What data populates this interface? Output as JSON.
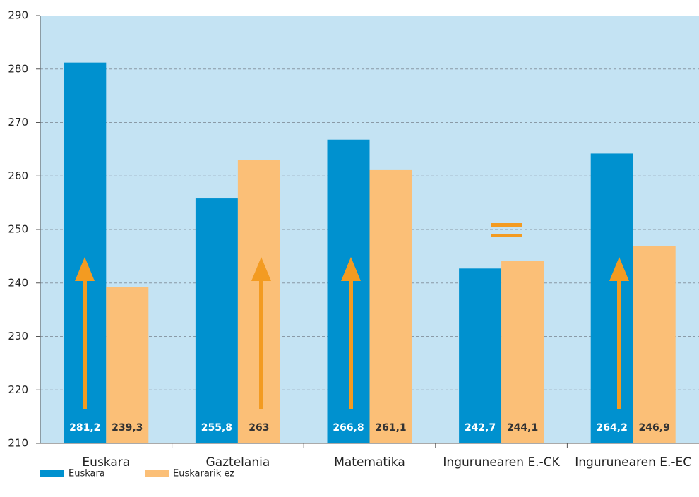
{
  "chart_data": {
    "type": "bar",
    "categories": [
      "Euskara",
      "Gaztelania",
      "Matematika",
      "Ingurunearen E.-CK",
      "Ingurunearen E.-EC"
    ],
    "series": [
      {
        "name": "Euskara",
        "color": "#0091cf",
        "values": [
          281.2,
          255.8,
          266.8,
          242.7,
          264.2
        ],
        "value_labels": [
          "281,2",
          "255,8",
          "266,8",
          "242,7",
          "264,2"
        ]
      },
      {
        "name": "Euskararik ez",
        "color": "#fbbf77",
        "values": [
          239.3,
          263,
          261.1,
          244.1,
          246.9
        ],
        "value_labels": [
          "239,3",
          "263",
          "261,1",
          "244,1",
          "246,9"
        ]
      }
    ],
    "ylim": [
      210,
      290
    ],
    "yticks": [
      210,
      220,
      230,
      240,
      250,
      260,
      270,
      280,
      290
    ],
    "grid": true
  }
}
